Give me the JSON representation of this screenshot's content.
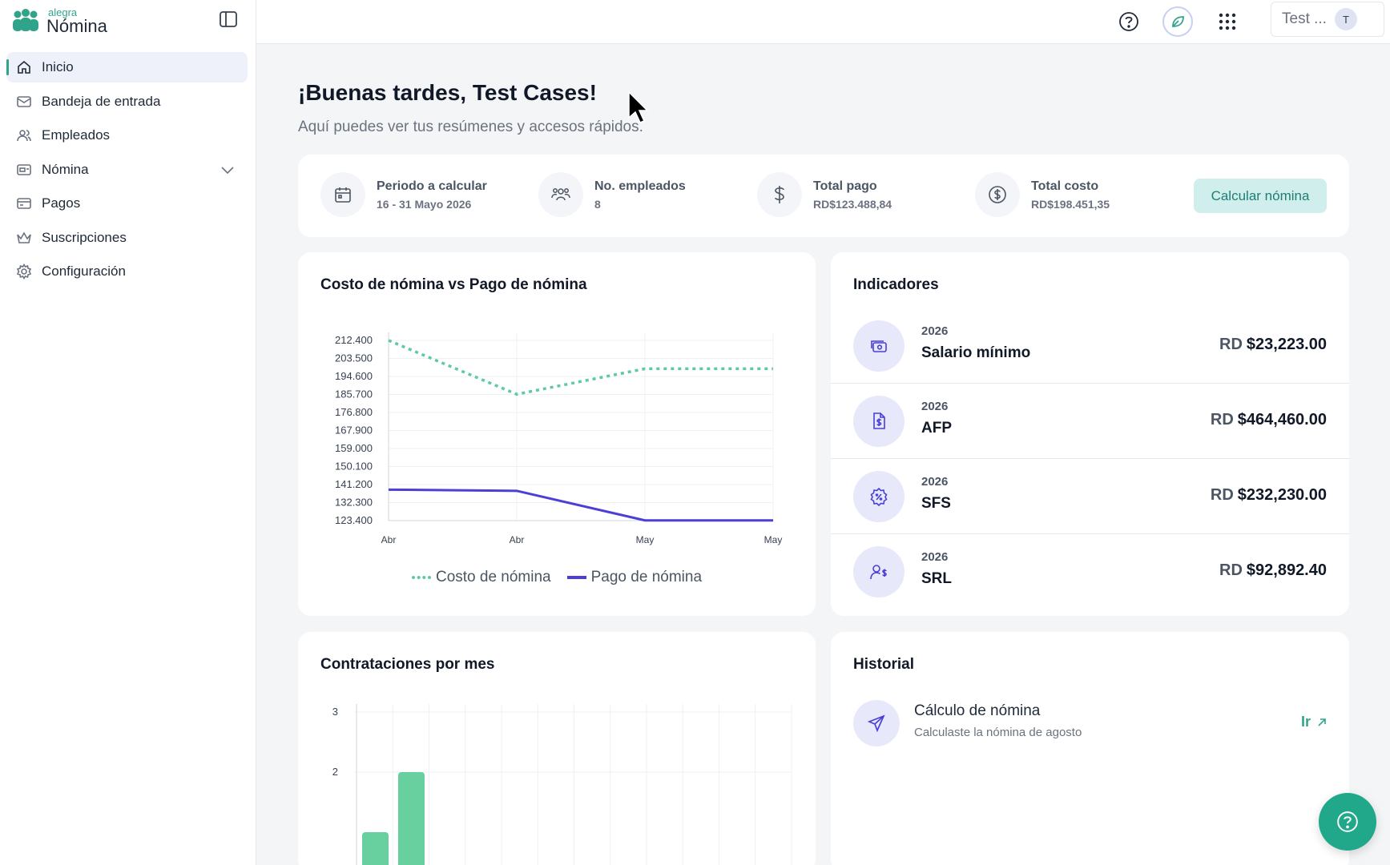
{
  "app": {
    "logo_small": "alegra",
    "logo_big": "Nómina"
  },
  "sidebar": {
    "items": [
      {
        "label": "Inicio",
        "icon": "home-icon"
      },
      {
        "label": "Bandeja de entrada",
        "icon": "mail-icon"
      },
      {
        "label": "Empleados",
        "icon": "users-icon"
      },
      {
        "label": "Nómina",
        "icon": "payroll-icon"
      },
      {
        "label": "Pagos",
        "icon": "wallet-icon"
      },
      {
        "label": "Suscripciones",
        "icon": "crown-icon"
      },
      {
        "label": "Configuración",
        "icon": "gear-icon"
      }
    ]
  },
  "topbar": {
    "user_name": "Test ...",
    "avatar_initial": "T"
  },
  "main": {
    "greeting": "¡Buenas tardes, Test Cases!",
    "subtitle": "Aquí puedes ver tus resúmenes y accesos rápidos."
  },
  "summary": {
    "period_title": "Periodo a calcular",
    "period_value": "16 - 31 Mayo 2026",
    "employees_title": "No. empleados",
    "employees_value": "8",
    "total_pay_title": "Total pago",
    "total_pay_value": "RD$123.488,84",
    "total_cost_title": "Total costo",
    "total_cost_value": "RD$198.451,35",
    "calc_button": "Calcular nómina"
  },
  "chart_data": [
    {
      "type": "line",
      "title": "Costo de nómina vs Pago de nómina",
      "categories": [
        "Abr",
        "Abr",
        "May",
        "May"
      ],
      "y_ticks": [
        "212.400",
        "203.500",
        "194.600",
        "185.700",
        "176.800",
        "167.900",
        "159.000",
        "150.100",
        "141.200",
        "132.300",
        "123.400"
      ],
      "ylim": [
        123400,
        212400
      ],
      "series": [
        {
          "name": "Costo de nómina",
          "style": "dotted",
          "color": "#5fcaa0",
          "values": [
            212400,
            185800,
            198400,
            198400
          ]
        },
        {
          "name": "Pago de nómina",
          "style": "solid",
          "color": "#4a3fd6",
          "values": [
            138700,
            138100,
            123500,
            123500
          ]
        }
      ],
      "legend": "bottom-center"
    },
    {
      "type": "bar",
      "title": "Contrataciones por mes",
      "y_ticks": [
        "3",
        "2"
      ],
      "ylim": [
        0,
        3
      ],
      "color": "#68cf9f",
      "values": [
        1,
        2
      ]
    }
  ],
  "indicators": {
    "title": "Indicadores",
    "items": [
      {
        "year": "2026",
        "name": "Salario mínimo",
        "currency": "RD",
        "amount": "$23,223.00",
        "icon": "money-icon"
      },
      {
        "year": "2026",
        "name": "AFP",
        "currency": "RD",
        "amount": "$464,460.00",
        "icon": "document-money-icon"
      },
      {
        "year": "2026",
        "name": "SFS",
        "currency": "RD",
        "amount": "$232,230.00",
        "icon": "percent-badge-icon"
      },
      {
        "year": "2026",
        "name": "SRL",
        "currency": "RD",
        "amount": "$92,892.40",
        "icon": "user-money-icon"
      }
    ]
  },
  "history": {
    "title": "Historial",
    "item_title": "Cálculo de nómina",
    "item_sub": "Calculaste la nómina de agosto",
    "link": "Ir"
  },
  "colors": {
    "accent": "#30a48a",
    "primary_line": "#4a3fd6",
    "secondary_line": "#5fcaa0"
  }
}
